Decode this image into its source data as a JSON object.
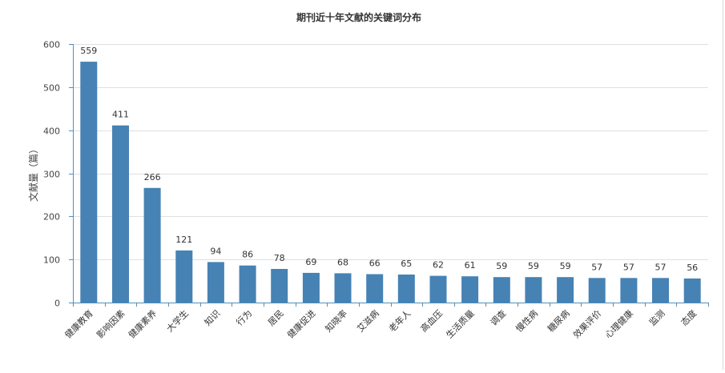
{
  "chart_data": {
    "type": "bar",
    "title": "期刊近十年文献的关键词分布",
    "ylabel": "文献量（篇）",
    "xlabel": "",
    "ylim": [
      0,
      600
    ],
    "yticks": [
      0,
      100,
      200,
      300,
      400,
      500,
      600
    ],
    "grid": true,
    "bar_color": "#4682b4",
    "categories": [
      "健康教育",
      "影响因素",
      "健康素养",
      "大学生",
      "知识",
      "行为",
      "居民",
      "健康促进",
      "知晓率",
      "艾滋病",
      "老年人",
      "高血压",
      "生活质量",
      "调查",
      "慢性病",
      "糖尿病",
      "效果评价",
      "心理健康",
      "监测",
      "态度"
    ],
    "values": [
      559,
      411,
      266,
      121,
      94,
      86,
      78,
      69,
      68,
      66,
      65,
      62,
      61,
      59,
      59,
      59,
      57,
      57,
      57,
      56
    ]
  }
}
